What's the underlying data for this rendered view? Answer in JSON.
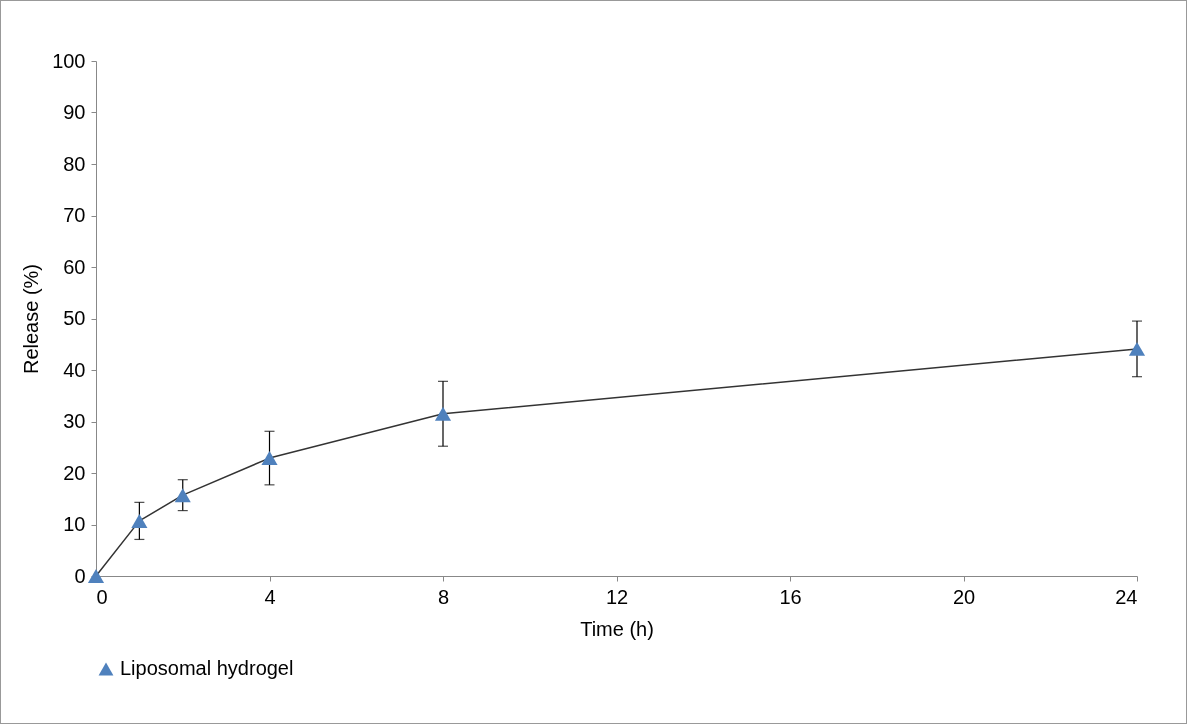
{
  "chart_data": {
    "type": "line",
    "xlabel": "Time (h)",
    "ylabel": "Release (%)",
    "x": [
      0,
      1,
      2,
      4,
      8,
      24
    ],
    "series": [
      {
        "name": "Liposomal hydrogel",
        "color": "#4f81bd",
        "values": [
          0,
          10.7,
          15.7,
          22.9,
          31.5,
          44.1
        ],
        "errors": [
          null,
          3.6,
          3,
          5.2,
          6.3,
          5.4
        ]
      }
    ],
    "xlim": [
      0,
      24
    ],
    "xticks": [
      0,
      4,
      8,
      12,
      16,
      20,
      24
    ],
    "ylim": [
      0,
      100
    ],
    "yticks": [
      0,
      10,
      20,
      30,
      40,
      50,
      60,
      70,
      80,
      90,
      100
    ],
    "grid": false,
    "legend": "bottom",
    "marker": "triangle",
    "line_style": "solid"
  }
}
